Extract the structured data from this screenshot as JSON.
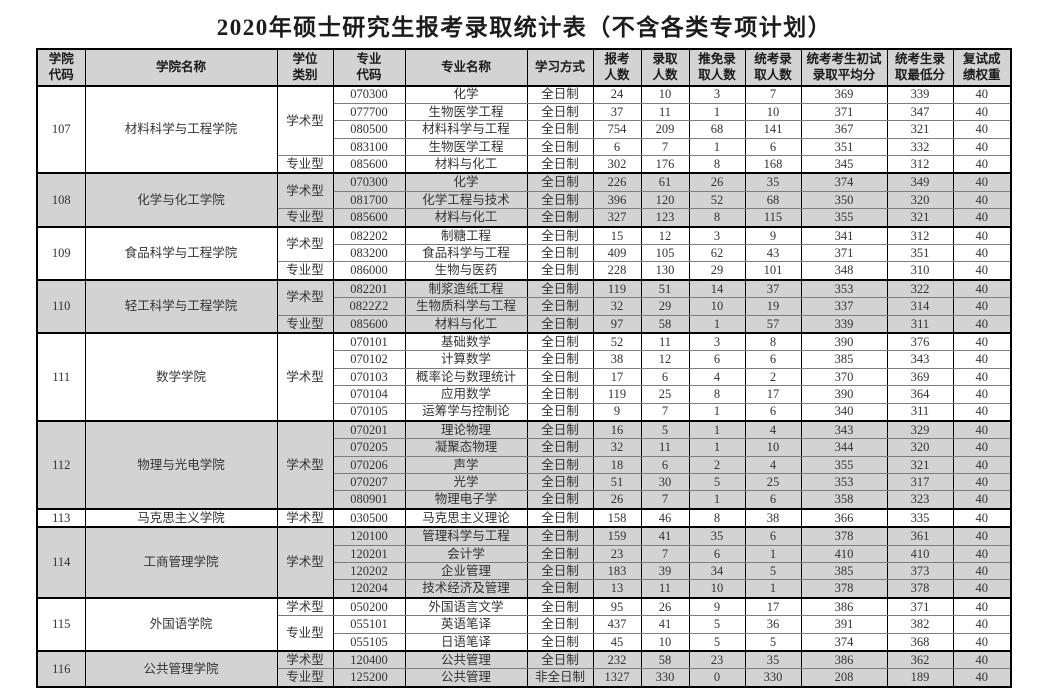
{
  "title": "2020年硕士研究生报考录取统计表（不含各类专项计划）",
  "colors": {
    "shaded_row": "#d3d3d3",
    "header_bg": "#d3d3d3",
    "border_dark": "#000000",
    "border_light": "#7d7d7d",
    "text": "#333333"
  },
  "columns": [
    "学院\n代码",
    "学院名称",
    "学位\n类别",
    "专业\n代码",
    "专业名称",
    "学习方式",
    "报考\n人数",
    "录取\n人数",
    "推免录\n取人数",
    "统考录\n取人数",
    "统考考生初试\n录取平均分",
    "统考生录\n取最低分",
    "复试成\n绩权重"
  ],
  "colleges": [
    {
      "code": "107",
      "name": "材料科学与工程学院",
      "shaded": false,
      "groups": [
        {
          "degree_type": "学术型",
          "majors": [
            {
              "code": "070300",
              "name": "化学",
              "mode": "全日制",
              "applied": 24,
              "admitted": 10,
              "exempt": 3,
              "unified": 7,
              "avg": 369,
              "min": 339,
              "weight": 40
            },
            {
              "code": "077700",
              "name": "生物医学工程",
              "mode": "全日制",
              "applied": 37,
              "admitted": 11,
              "exempt": 1,
              "unified": 10,
              "avg": 371,
              "min": 347,
              "weight": 40
            },
            {
              "code": "080500",
              "name": "材料科学与工程",
              "mode": "全日制",
              "applied": 754,
              "admitted": 209,
              "exempt": 68,
              "unified": 141,
              "avg": 367,
              "min": 321,
              "weight": 40
            },
            {
              "code": "083100",
              "name": "生物医学工程",
              "mode": "全日制",
              "applied": 6,
              "admitted": 7,
              "exempt": 1,
              "unified": 6,
              "avg": 351,
              "min": 332,
              "weight": 40
            }
          ]
        },
        {
          "degree_type": "专业型",
          "majors": [
            {
              "code": "085600",
              "name": "材料与化工",
              "mode": "全日制",
              "applied": 302,
              "admitted": 176,
              "exempt": 8,
              "unified": 168,
              "avg": 345,
              "min": 312,
              "weight": 40
            }
          ]
        }
      ]
    },
    {
      "code": "108",
      "name": "化学与化工学院",
      "shaded": true,
      "groups": [
        {
          "degree_type": "学术型",
          "majors": [
            {
              "code": "070300",
              "name": "化学",
              "mode": "全日制",
              "applied": 226,
              "admitted": 61,
              "exempt": 26,
              "unified": 35,
              "avg": 374,
              "min": 349,
              "weight": 40
            },
            {
              "code": "081700",
              "name": "化学工程与技术",
              "mode": "全日制",
              "applied": 396,
              "admitted": 120,
              "exempt": 52,
              "unified": 68,
              "avg": 350,
              "min": 320,
              "weight": 40
            }
          ]
        },
        {
          "degree_type": "专业型",
          "majors": [
            {
              "code": "085600",
              "name": "材料与化工",
              "mode": "全日制",
              "applied": 327,
              "admitted": 123,
              "exempt": 8,
              "unified": 115,
              "avg": 355,
              "min": 321,
              "weight": 40
            }
          ]
        }
      ]
    },
    {
      "code": "109",
      "name": "食品科学与工程学院",
      "shaded": false,
      "groups": [
        {
          "degree_type": "学术型",
          "majors": [
            {
              "code": "082202",
              "name": "制糖工程",
              "mode": "全日制",
              "applied": 15,
              "admitted": 12,
              "exempt": 3,
              "unified": 9,
              "avg": 341,
              "min": 312,
              "weight": 40
            },
            {
              "code": "083200",
              "name": "食品科学与工程",
              "mode": "全日制",
              "applied": 409,
              "admitted": 105,
              "exempt": 62,
              "unified": 43,
              "avg": 371,
              "min": 351,
              "weight": 40
            }
          ]
        },
        {
          "degree_type": "专业型",
          "majors": [
            {
              "code": "086000",
              "name": "生物与医药",
              "mode": "全日制",
              "applied": 228,
              "admitted": 130,
              "exempt": 29,
              "unified": 101,
              "avg": 348,
              "min": 310,
              "weight": 40
            }
          ]
        }
      ]
    },
    {
      "code": "110",
      "name": "轻工科学与工程学院",
      "shaded": true,
      "groups": [
        {
          "degree_type": "学术型",
          "majors": [
            {
              "code": "082201",
              "name": "制浆造纸工程",
              "mode": "全日制",
              "applied": 119,
              "admitted": 51,
              "exempt": 14,
              "unified": 37,
              "avg": 353,
              "min": 322,
              "weight": 40
            },
            {
              "code": "0822Z2",
              "name": "生物质科学与工程",
              "mode": "全日制",
              "applied": 32,
              "admitted": 29,
              "exempt": 10,
              "unified": 19,
              "avg": 337,
              "min": 314,
              "weight": 40
            }
          ]
        },
        {
          "degree_type": "专业型",
          "majors": [
            {
              "code": "085600",
              "name": "材料与化工",
              "mode": "全日制",
              "applied": 97,
              "admitted": 58,
              "exempt": 1,
              "unified": 57,
              "avg": 339,
              "min": 311,
              "weight": 40
            }
          ]
        }
      ]
    },
    {
      "code": "111",
      "name": "数学学院",
      "shaded": false,
      "groups": [
        {
          "degree_type": "学术型",
          "majors": [
            {
              "code": "070101",
              "name": "基础数学",
              "mode": "全日制",
              "applied": 52,
              "admitted": 11,
              "exempt": 3,
              "unified": 8,
              "avg": 390,
              "min": 376,
              "weight": 40
            },
            {
              "code": "070102",
              "name": "计算数学",
              "mode": "全日制",
              "applied": 38,
              "admitted": 12,
              "exempt": 6,
              "unified": 6,
              "avg": 385,
              "min": 343,
              "weight": 40
            },
            {
              "code": "070103",
              "name": "概率论与数理统计",
              "mode": "全日制",
              "applied": 17,
              "admitted": 6,
              "exempt": 4,
              "unified": 2,
              "avg": 370,
              "min": 369,
              "weight": 40
            },
            {
              "code": "070104",
              "name": "应用数学",
              "mode": "全日制",
              "applied": 119,
              "admitted": 25,
              "exempt": 8,
              "unified": 17,
              "avg": 390,
              "min": 364,
              "weight": 40
            },
            {
              "code": "070105",
              "name": "运筹学与控制论",
              "mode": "全日制",
              "applied": 9,
              "admitted": 7,
              "exempt": 1,
              "unified": 6,
              "avg": 340,
              "min": 311,
              "weight": 40
            }
          ]
        }
      ]
    },
    {
      "code": "112",
      "name": "物理与光电学院",
      "shaded": true,
      "groups": [
        {
          "degree_type": "学术型",
          "majors": [
            {
              "code": "070201",
              "name": "理论物理",
              "mode": "全日制",
              "applied": 16,
              "admitted": 5,
              "exempt": 1,
              "unified": 4,
              "avg": 343,
              "min": 329,
              "weight": 40
            },
            {
              "code": "070205",
              "name": "凝聚态物理",
              "mode": "全日制",
              "applied": 32,
              "admitted": 11,
              "exempt": 1,
              "unified": 10,
              "avg": 344,
              "min": 320,
              "weight": 40
            },
            {
              "code": "070206",
              "name": "声学",
              "mode": "全日制",
              "applied": 18,
              "admitted": 6,
              "exempt": 2,
              "unified": 4,
              "avg": 355,
              "min": 321,
              "weight": 40
            },
            {
              "code": "070207",
              "name": "光学",
              "mode": "全日制",
              "applied": 51,
              "admitted": 30,
              "exempt": 5,
              "unified": 25,
              "avg": 353,
              "min": 317,
              "weight": 40
            },
            {
              "code": "080901",
              "name": "物理电子学",
              "mode": "全日制",
              "applied": 26,
              "admitted": 7,
              "exempt": 1,
              "unified": 6,
              "avg": 358,
              "min": 323,
              "weight": 40
            }
          ]
        }
      ]
    },
    {
      "code": "113",
      "name": "马克思主义学院",
      "shaded": false,
      "groups": [
        {
          "degree_type": "学术型",
          "majors": [
            {
              "code": "030500",
              "name": "马克思主义理论",
              "mode": "全日制",
              "applied": 158,
              "admitted": 46,
              "exempt": 8,
              "unified": 38,
              "avg": 366,
              "min": 335,
              "weight": 40
            }
          ]
        }
      ]
    },
    {
      "code": "114",
      "name": "工商管理学院",
      "shaded": true,
      "groups": [
        {
          "degree_type": "学术型",
          "majors": [
            {
              "code": "120100",
              "name": "管理科学与工程",
              "mode": "全日制",
              "applied": 159,
              "admitted": 41,
              "exempt": 35,
              "unified": 6,
              "avg": 378,
              "min": 361,
              "weight": 40
            },
            {
              "code": "120201",
              "name": "会计学",
              "mode": "全日制",
              "applied": 23,
              "admitted": 7,
              "exempt": 6,
              "unified": 1,
              "avg": 410,
              "min": 410,
              "weight": 40
            },
            {
              "code": "120202",
              "name": "企业管理",
              "mode": "全日制",
              "applied": 183,
              "admitted": 39,
              "exempt": 34,
              "unified": 5,
              "avg": 385,
              "min": 373,
              "weight": 40
            },
            {
              "code": "120204",
              "name": "技术经济及管理",
              "mode": "全日制",
              "applied": 13,
              "admitted": 11,
              "exempt": 10,
              "unified": 1,
              "avg": 378,
              "min": 378,
              "weight": 40
            }
          ]
        }
      ]
    },
    {
      "code": "115",
      "name": "外国语学院",
      "shaded": false,
      "groups": [
        {
          "degree_type": "学术型",
          "majors": [
            {
              "code": "050200",
              "name": "外国语言文学",
              "mode": "全日制",
              "applied": 95,
              "admitted": 26,
              "exempt": 9,
              "unified": 17,
              "avg": 386,
              "min": 371,
              "weight": 40
            }
          ]
        },
        {
          "degree_type": "专业型",
          "majors": [
            {
              "code": "055101",
              "name": "英语笔译",
              "mode": "全日制",
              "applied": 437,
              "admitted": 41,
              "exempt": 5,
              "unified": 36,
              "avg": 391,
              "min": 382,
              "weight": 40
            },
            {
              "code": "055105",
              "name": "日语笔译",
              "mode": "全日制",
              "applied": 45,
              "admitted": 10,
              "exempt": 5,
              "unified": 5,
              "avg": 374,
              "min": 368,
              "weight": 40
            }
          ]
        }
      ]
    },
    {
      "code": "116",
      "name": "公共管理学院",
      "shaded": true,
      "groups": [
        {
          "degree_type": "学术型",
          "majors": [
            {
              "code": "120400",
              "name": "公共管理",
              "mode": "全日制",
              "applied": 232,
              "admitted": 58,
              "exempt": 23,
              "unified": 35,
              "avg": 386,
              "min": 362,
              "weight": 40
            }
          ]
        },
        {
          "degree_type": "专业型",
          "majors": [
            {
              "code": "125200",
              "name": "公共管理",
              "mode": "非全日制",
              "applied": 1327,
              "admitted": 330,
              "exempt": 0,
              "unified": 330,
              "avg": 208,
              "min": 189,
              "weight": 40
            }
          ]
        }
      ]
    }
  ]
}
